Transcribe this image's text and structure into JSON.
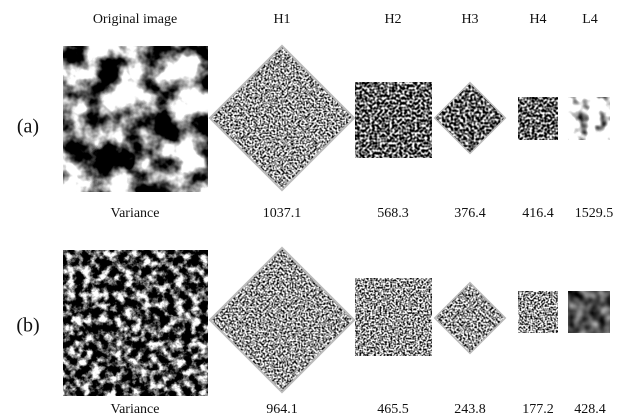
{
  "headers": [
    "Original image",
    "H1",
    "H2",
    "H3",
    "H4",
    "L4"
  ],
  "rows": [
    {
      "label": "(a)",
      "variance_label": "Variance",
      "values": [
        1037.1,
        568.3,
        376.4,
        416.4,
        1529.5
      ]
    },
    {
      "label": "(b)",
      "variance_label": "Variance",
      "values": [
        964.1,
        465.5,
        243.8,
        177.2,
        428.4
      ]
    }
  ]
}
